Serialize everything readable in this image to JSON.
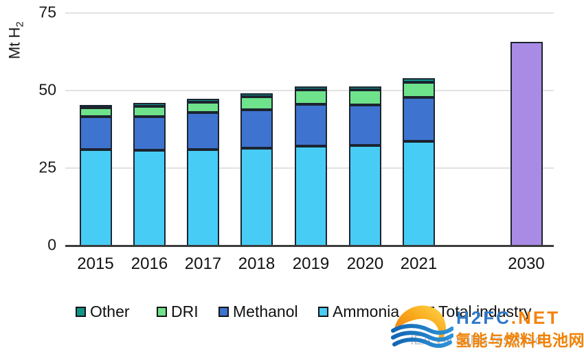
{
  "chart_data": {
    "type": "bar",
    "stacked": true,
    "title": "",
    "ylabel": "Mt H2",
    "ylabel_prefix": "Mt H",
    "ylabel_sub": "2",
    "ylim": [
      0,
      75
    ],
    "yticks": [
      "0",
      "25",
      "50",
      "75"
    ],
    "grid": "horizontal",
    "legend_position": "bottom",
    "categories": [
      "2015",
      "2016",
      "2017",
      "2018",
      "2019",
      "2020",
      "2021",
      "2030"
    ],
    "series": [
      {
        "name": "Ammonia",
        "color": "#47cdf5",
        "values": [
          31.3,
          31.0,
          31.2,
          31.7,
          32.4,
          32.5,
          33.9,
          0
        ]
      },
      {
        "name": "Methanol",
        "color": "#3e74d0",
        "values": [
          10.5,
          10.8,
          12.0,
          12.4,
          13.4,
          13.1,
          14.2,
          0
        ]
      },
      {
        "name": "DRI",
        "color": "#6fe38b",
        "values": [
          2.9,
          3.5,
          3.4,
          4.2,
          4.8,
          5.0,
          4.9,
          0
        ]
      },
      {
        "name": "Other",
        "color": "#0e9688",
        "values": [
          1.0,
          1.0,
          1.0,
          1.0,
          1.0,
          1.0,
          1.2,
          0
        ]
      },
      {
        "name": "Total industry",
        "color": "#a98be6",
        "values": [
          0,
          0,
          0,
          0,
          0,
          0,
          0,
          66
        ]
      }
    ]
  },
  "legend": {
    "items": [
      {
        "label": "Other",
        "color": "#0e9688"
      },
      {
        "label": "DRI",
        "color": "#6fe38b"
      },
      {
        "label": "Methanol",
        "color": "#3e74d0"
      },
      {
        "label": "Ammonia",
        "color": "#47cdf5"
      },
      {
        "label": "Total industry",
        "color": "#a98be6"
      }
    ]
  },
  "footer": {
    "iea_notice": "IEA. All rights reserved."
  },
  "watermark": {
    "site_blue": "H2FC",
    "site_orange": ".NET",
    "site_cn": "氢能与燃料电池网",
    "logo": "sun-over-waves-icon",
    "blue": "#2e79c8",
    "orange": "#f5820a"
  }
}
